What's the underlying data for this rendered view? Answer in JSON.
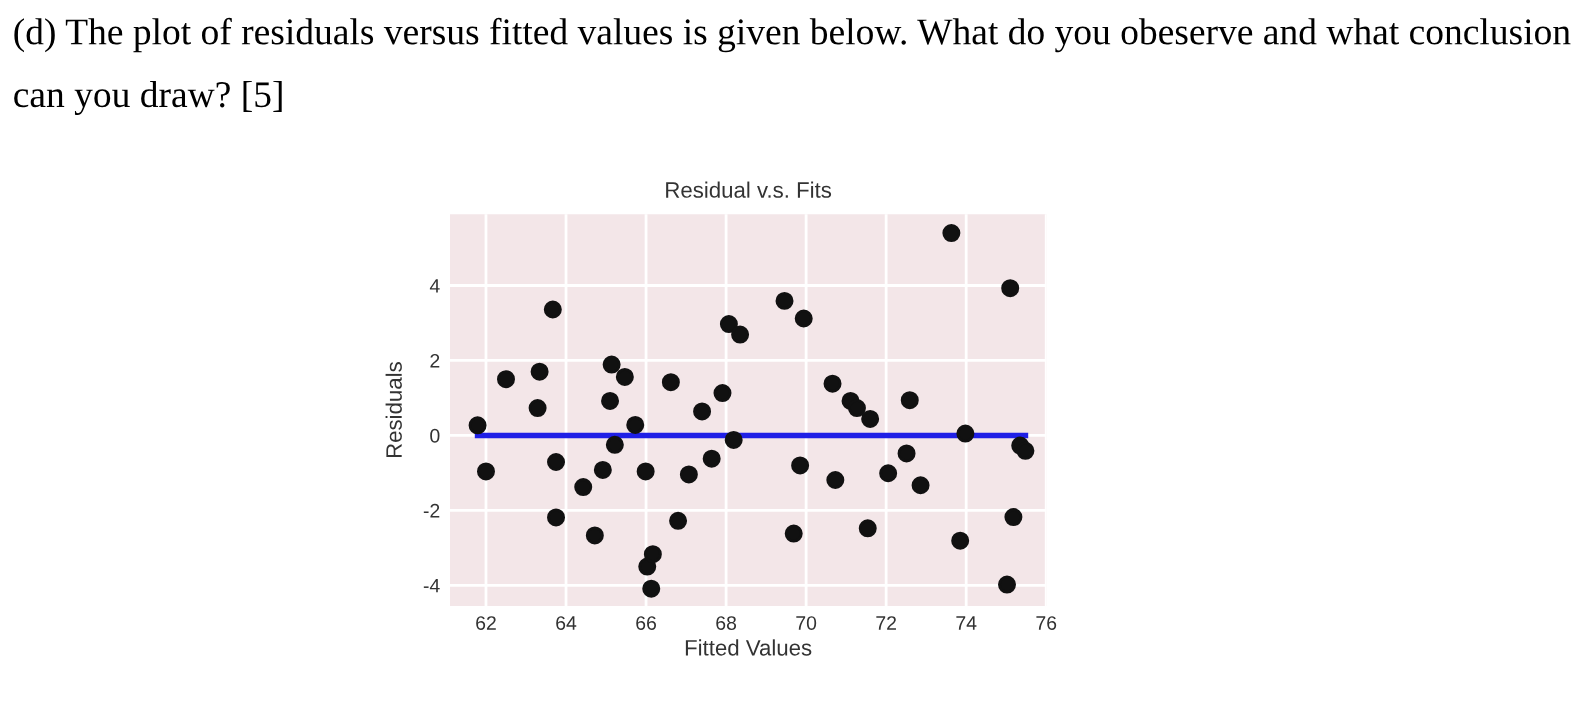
{
  "chart_data": {
    "type": "scatter",
    "title": "Residual v.s. Fits",
    "xlabel": "Fitted Values",
    "ylabel": "Residuals",
    "annotations": [
      "(d) The plot of residuals versus fitted values is given below. What do you obeserve and what conclusion can you draw? [5]"
    ],
    "series": [
      {
        "color": "#111111",
        "marker": "circle",
        "x": [
          61.79,
          62.0,
          62.5,
          63.29,
          63.34,
          63.67,
          63.75,
          63.75,
          64.43,
          64.72,
          64.92,
          65.1,
          65.14,
          65.22,
          65.47,
          65.73,
          65.99,
          66.03,
          66.17,
          66.13,
          66.62,
          66.8,
          67.07,
          67.4,
          67.64,
          67.91,
          68.07,
          68.19,
          68.35,
          69.46,
          69.69,
          69.85,
          69.94,
          70.66,
          70.73,
          71.11,
          71.27,
          71.54,
          71.6,
          72.05,
          72.51,
          72.59,
          72.86,
          73.63,
          73.85,
          73.98,
          75.02,
          75.1,
          75.18,
          75.35,
          75.48
        ],
        "values": [
          0.27,
          -0.96,
          1.5,
          0.73,
          1.7,
          3.36,
          -0.71,
          -2.19,
          -1.38,
          -2.67,
          -0.92,
          0.92,
          1.89,
          -0.25,
          1.56,
          0.28,
          -0.96,
          -3.5,
          -3.17,
          -4.09,
          1.42,
          -2.28,
          -1.04,
          0.64,
          -0.62,
          1.13,
          2.97,
          -0.12,
          2.69,
          3.59,
          -2.62,
          -0.8,
          3.12,
          1.38,
          -1.19,
          0.92,
          0.73,
          -2.48,
          0.44,
          -1.01,
          -0.48,
          0.94,
          -1.33,
          5.4,
          -2.81,
          0.05,
          -3.98,
          3.93,
          -2.18,
          -0.27,
          -0.41
        ]
      },
      {
        "type": "line",
        "color": "#1f1fe6",
        "marker": "none",
        "x": [
          61.79,
          75.48
        ],
        "values": [
          0,
          0
        ]
      }
    ],
    "xlim": [
      61.1,
      76.0
    ],
    "ylim": [
      -4.55,
      5.9
    ],
    "xticks": [
      62,
      64,
      66,
      68,
      70,
      72,
      74,
      76
    ],
    "yticks": [
      -4,
      -2,
      0,
      2,
      4
    ],
    "grid": true,
    "legend": false
  }
}
